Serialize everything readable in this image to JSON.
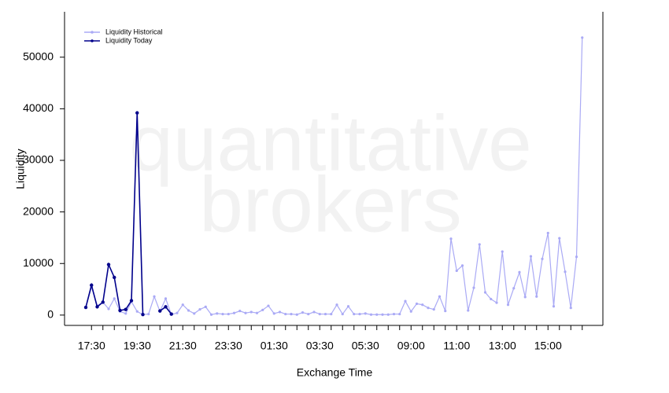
{
  "chart_data": {
    "type": "line",
    "watermark": [
      "quantitative",
      "brokers"
    ],
    "xlabel": "Exchange Time",
    "ylabel": "Liquidity",
    "categories": [
      null,
      "17:30",
      null,
      null,
      null,
      null,
      null,
      null,
      null,
      "19:30",
      null,
      null,
      null,
      null,
      null,
      null,
      null,
      "21:30",
      null,
      null,
      null,
      null,
      null,
      null,
      null,
      "23:30",
      null,
      null,
      null,
      null,
      null,
      null,
      null,
      "01:30",
      null,
      null,
      null,
      null,
      null,
      null,
      null,
      "03:30",
      null,
      null,
      null,
      null,
      null,
      null,
      null,
      "05:30",
      null,
      null,
      null,
      null,
      null,
      null,
      null,
      "09:00",
      null,
      null,
      null,
      null,
      null,
      null,
      null,
      "11:00",
      null,
      null,
      null,
      null,
      null,
      null,
      null,
      "13:00",
      null,
      null,
      null,
      null,
      null,
      null,
      null,
      "15:00",
      null,
      null,
      null,
      null,
      null,
      null
    ],
    "series": [
      {
        "name": "Liquidity Historical",
        "color": "#aaaaf5",
        "values": [
          1500,
          5500,
          1800,
          2500,
          1200,
          3200,
          700,
          300,
          2600,
          700,
          100,
          200,
          3600,
          700,
          3200,
          100,
          400,
          2000,
          900,
          300,
          1100,
          1600,
          100,
          300,
          200,
          200,
          400,
          800,
          400,
          600,
          400,
          1000,
          1800,
          300,
          600,
          200,
          200,
          100,
          500,
          200,
          600,
          200,
          200,
          200,
          2000,
          200,
          1700,
          200,
          200,
          300,
          100,
          100,
          100,
          100,
          200,
          200,
          2700,
          700,
          2200,
          2000,
          1400,
          1100,
          3600,
          800,
          14800,
          8600,
          9600,
          900,
          5300,
          13700,
          4400,
          3100,
          2400,
          12300,
          2000,
          5200,
          8300,
          3500,
          11400,
          3600,
          10900,
          15900,
          1700,
          14900,
          8400,
          1400,
          11300,
          53800
        ]
      },
      {
        "name": "Liquidity Today",
        "color": "#00008b",
        "values": [
          1500,
          5800,
          1600,
          2500,
          9800,
          7300,
          900,
          1100,
          2800,
          39200,
          100,
          null,
          null,
          800,
          1600,
          200,
          null,
          null,
          null,
          null,
          null,
          null,
          null,
          null,
          null,
          null,
          null,
          null,
          null,
          null,
          null,
          null,
          null,
          null,
          null,
          null,
          null,
          null,
          null,
          null,
          null,
          null,
          null,
          null,
          null,
          null,
          null,
          null,
          null,
          null,
          null,
          null,
          null,
          null,
          null,
          null,
          null,
          null,
          null,
          null,
          null,
          null,
          null,
          null,
          null,
          null,
          null,
          null,
          null,
          null,
          null,
          null,
          null,
          null,
          null,
          null,
          null,
          null,
          null,
          null,
          null,
          null,
          null,
          null,
          null,
          null,
          null,
          null
        ]
      }
    ],
    "ylim": [
      -2000,
      58800
    ],
    "yticks": [
      0,
      10000,
      20000,
      30000,
      40000,
      50000
    ]
  }
}
